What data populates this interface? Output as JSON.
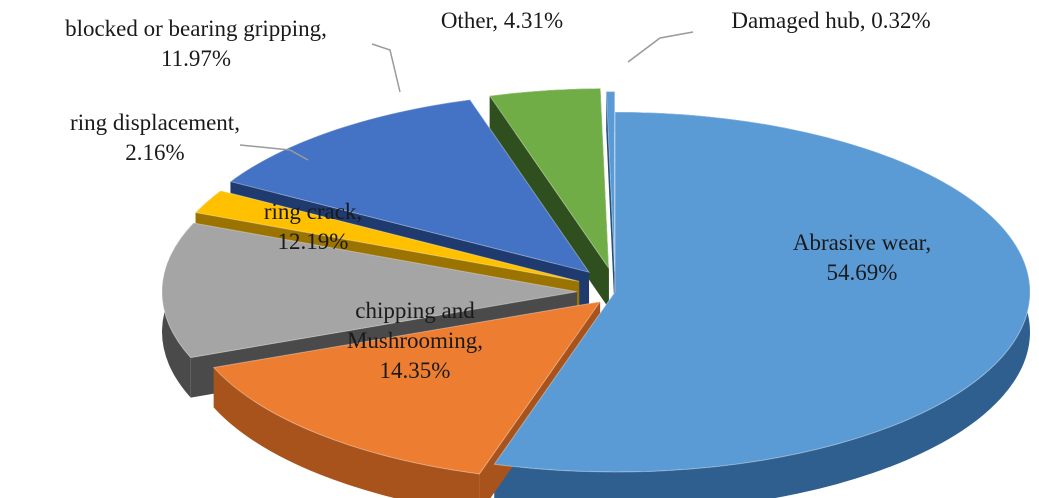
{
  "chart_data": {
    "type": "pie",
    "style": "3d-exploded",
    "title": "",
    "slices": [
      {
        "label": "Abrasive wear",
        "value": 54.69,
        "value_label": "54.69%",
        "color": "#5b9bd5",
        "side_color": "#2e5f8f",
        "label_placement": "inside"
      },
      {
        "label": "chipping and Mushrooming",
        "value": 14.35,
        "value_label": "14.35%",
        "color": "#ed7d31",
        "side_color": "#a9531c",
        "label_placement": "inside"
      },
      {
        "label": "ring crack",
        "value": 12.19,
        "value_label": "12.19%",
        "color": "#a5a5a5",
        "side_color": "#4a4a4a",
        "label_placement": "inside"
      },
      {
        "label": "ring displacement",
        "value": 2.16,
        "value_label": "2.16%",
        "color": "#ffc000",
        "side_color": "#9a7300",
        "label_placement": "outside"
      },
      {
        "label": "blocked or bearing gripping",
        "value": 11.97,
        "value_label": "11.97%",
        "color": "#4472c4",
        "side_color": "#1f3a6e",
        "label_placement": "outside"
      },
      {
        "label": "Other",
        "value": 4.31,
        "value_label": "4.31%",
        "color": "#70ad47",
        "side_color": "#2f4f1e",
        "label_placement": "outside"
      },
      {
        "label": "Damaged hub",
        "value": 0.32,
        "value_label": "0.32%",
        "color": "#5b9bd5",
        "side_color": "#1f4e79",
        "label_placement": "outside"
      }
    ]
  }
}
